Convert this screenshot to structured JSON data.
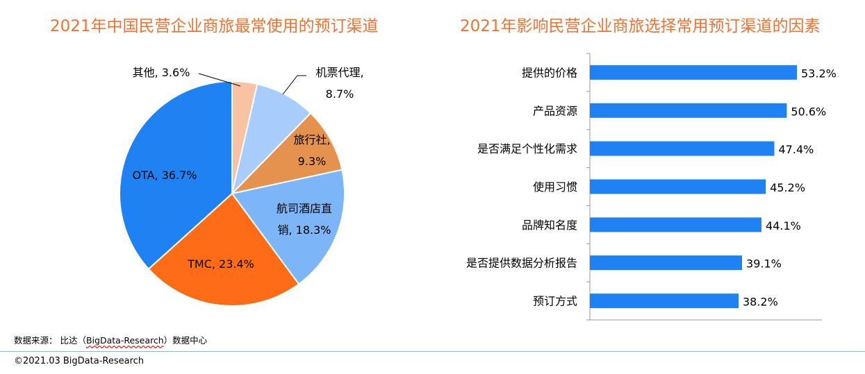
{
  "chart_data": [
    {
      "type": "pie",
      "title": "2021年中国民营企业商旅最常使用的预订渠道",
      "slices": [
        {
          "name": "其他",
          "value": 3.6,
          "label": "其他, 3.6%",
          "color": "#f8c3a2"
        },
        {
          "name": "机票代理",
          "value": 8.7,
          "label": "机票代理,|8.7%",
          "color": "#a8cdfc"
        },
        {
          "name": "旅行社",
          "value": 9.3,
          "label": "旅行社,|9.3%",
          "color": "#e5924e"
        },
        {
          "name": "航司酒店直销",
          "value": 18.3,
          "label": "航司酒店直|销, 18.3%",
          "color": "#7cb5f8"
        },
        {
          "name": "TMC",
          "value": 23.4,
          "label": "TMC, 23.4%",
          "color": "#fe6d15"
        },
        {
          "name": "OTA",
          "value": 36.7,
          "label": "OTA, 36.7%",
          "color": "#1f82f3"
        }
      ]
    },
    {
      "type": "bar",
      "orientation": "horizontal",
      "title": "2021年影响民营企业商旅选择常用预订渠道的因素",
      "categories": [
        "提供的价格",
        "产品资源",
        "是否满足个性化需求",
        "使用习惯",
        "品牌知名度",
        "是否提供数据分析报告",
        "预订方式"
      ],
      "values": [
        53.2,
        50.6,
        47.4,
        45.2,
        44.1,
        39.1,
        38.2
      ],
      "value_labels": [
        "53.2%",
        "50.6%",
        "47.4%",
        "45.2%",
        "44.1%",
        "39.1%",
        "38.2%"
      ],
      "xlim": [
        0,
        60
      ],
      "bar_color": "#1f82f3",
      "grid": false
    }
  ],
  "footer": {
    "source_prefix": "数据来源： 比达（",
    "source_name": "BigData-Research",
    "source_suffix": "）数据中心",
    "copyright": "©2021.03 BigData-Research"
  }
}
